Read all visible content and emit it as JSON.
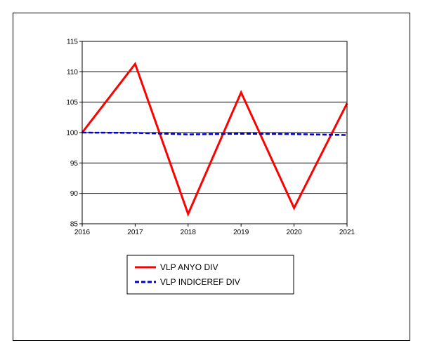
{
  "chart_data": {
    "type": "line",
    "x": [
      "2016",
      "2017",
      "2018",
      "2019",
      "2020",
      "2021"
    ],
    "ylim": [
      85,
      115
    ],
    "yticks": [
      "85",
      "90",
      "95",
      "100",
      "105",
      "110",
      "115"
    ],
    "grid": true,
    "legend_position": "bottom-left",
    "series": [
      {
        "name": "VLP ANYO DIV",
        "values": [
          100,
          111.3,
          86.6,
          106.6,
          87.6,
          104.8
        ],
        "color": "#ff0000",
        "style": "solid"
      },
      {
        "name": "VLP INDICEREF DIV",
        "values": [
          100,
          99.95,
          99.7,
          99.8,
          99.75,
          99.6
        ],
        "color": "#0000cc",
        "style": "dashed"
      }
    ]
  }
}
